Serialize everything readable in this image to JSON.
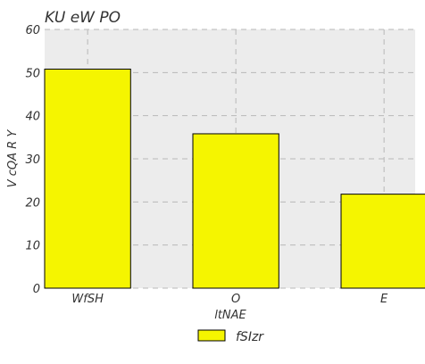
{
  "chart_data": {
    "type": "bar",
    "title": "KU eW PO",
    "xlabel": "ltNAE",
    "ylabel": "V  cQA R Y",
    "categories": [
      "WfSH",
      "O",
      "E"
    ],
    "series": [
      {
        "name": "fSIzr",
        "values": [
          50.8,
          35.8,
          21.8
        ]
      }
    ],
    "ylim": [
      0,
      60
    ],
    "yticks": [
      0,
      10,
      20,
      30,
      40,
      50,
      60
    ],
    "grid": true,
    "legend_position": "bottom",
    "colors": {
      "bar_fill": "#f5f500",
      "bar_edge": "#000000",
      "plot_background": "#ececec",
      "grid": "#b8b8b8"
    }
  }
}
